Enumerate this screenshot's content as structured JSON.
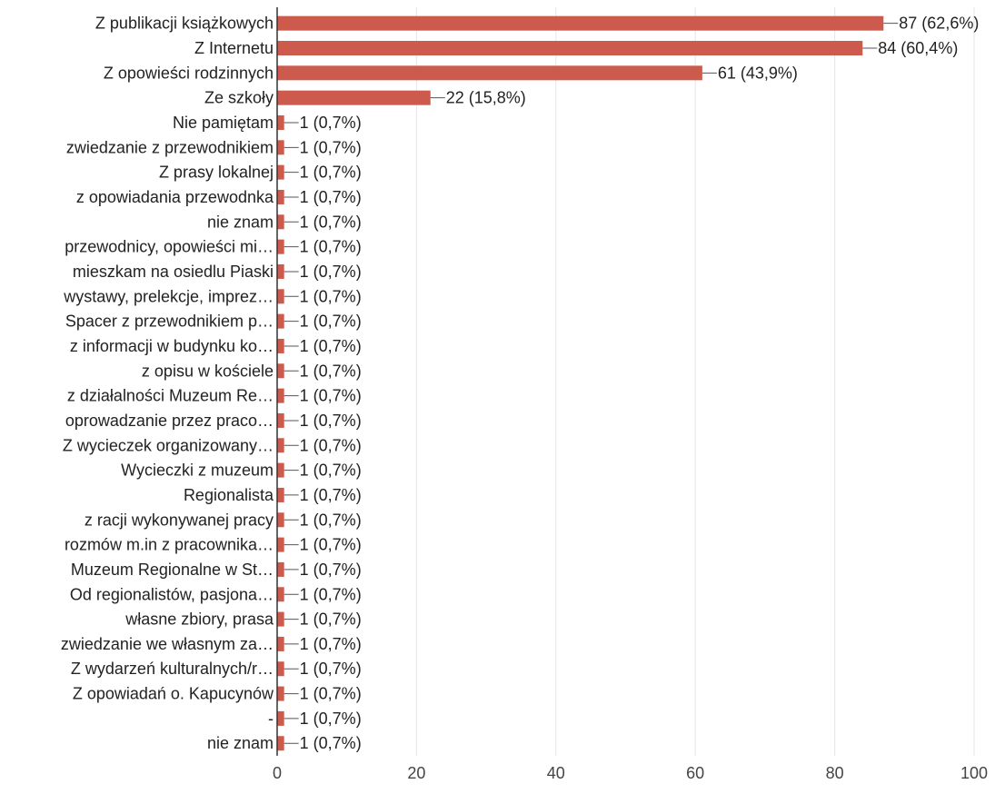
{
  "chart_data": {
    "type": "bar",
    "orientation": "horizontal",
    "categories": [
      "Z publikacji książkowych",
      "Z Internetu",
      "Z opowieści rodzinnych",
      "Ze szkoły",
      "Nie pamiętam",
      "zwiedzanie z przewodnikiem",
      "Z prasy lokalnej",
      "z opowiadania przewodnka",
      "nie znam",
      "przewodnicy, opowieści mi…",
      "mieszkam na osiedlu Piaski",
      "wystawy, prelekcje, imprez…",
      "Spacer z przewodnikiem p…",
      "z informacji w budynku ko…",
      "z opisu w kościele",
      "z działalności Muzeum Re…",
      "oprowadzanie przez praco…",
      "Z wycieczek organizowany…",
      "Wycieczki z muzeum",
      "Regionalista",
      "z racji wykonywanej pracy",
      "rozmów m.in z pracownika…",
      "Muzeum Regionalne w St…",
      "Od regionalistów, pasjona…",
      "własne zbiory, prasa",
      "zwiedzanie we własnym za…",
      "Z wydarzeń kulturalnych/r…",
      "Z opowiadań o. Kapucynów",
      "-",
      "nie znam"
    ],
    "values": [
      87,
      84,
      61,
      22,
      1,
      1,
      1,
      1,
      1,
      1,
      1,
      1,
      1,
      1,
      1,
      1,
      1,
      1,
      1,
      1,
      1,
      1,
      1,
      1,
      1,
      1,
      1,
      1,
      1,
      1
    ],
    "value_labels": [
      "87 (62,6%)",
      "84 (60,4%)",
      "61 (43,9%)",
      "22 (15,8%)",
      "1 (0,7%)",
      "1 (0,7%)",
      "1 (0,7%)",
      "1 (0,7%)",
      "1 (0,7%)",
      "1 (0,7%)",
      "1 (0,7%)",
      "1 (0,7%)",
      "1 (0,7%)",
      "1 (0,7%)",
      "1 (0,7%)",
      "1 (0,7%)",
      "1 (0,7%)",
      "1 (0,7%)",
      "1 (0,7%)",
      "1 (0,7%)",
      "1 (0,7%)",
      "1 (0,7%)",
      "1 (0,7%)",
      "1 (0,7%)",
      "1 (0,7%)",
      "1 (0,7%)",
      "1 (0,7%)",
      "1 (0,7%)",
      "1 (0,7%)",
      "1 (0,7%)"
    ],
    "xlim": [
      0,
      100
    ],
    "xticks": [
      0,
      20,
      40,
      60,
      80,
      100
    ],
    "xtick_labels": [
      "0",
      "20",
      "40",
      "60",
      "80",
      "100"
    ],
    "grid": true,
    "bar_color": "#cc5b4e",
    "grid_color": "#e6e6e6",
    "axis_color": "#333333",
    "title": "",
    "xlabel": "",
    "ylabel": ""
  }
}
